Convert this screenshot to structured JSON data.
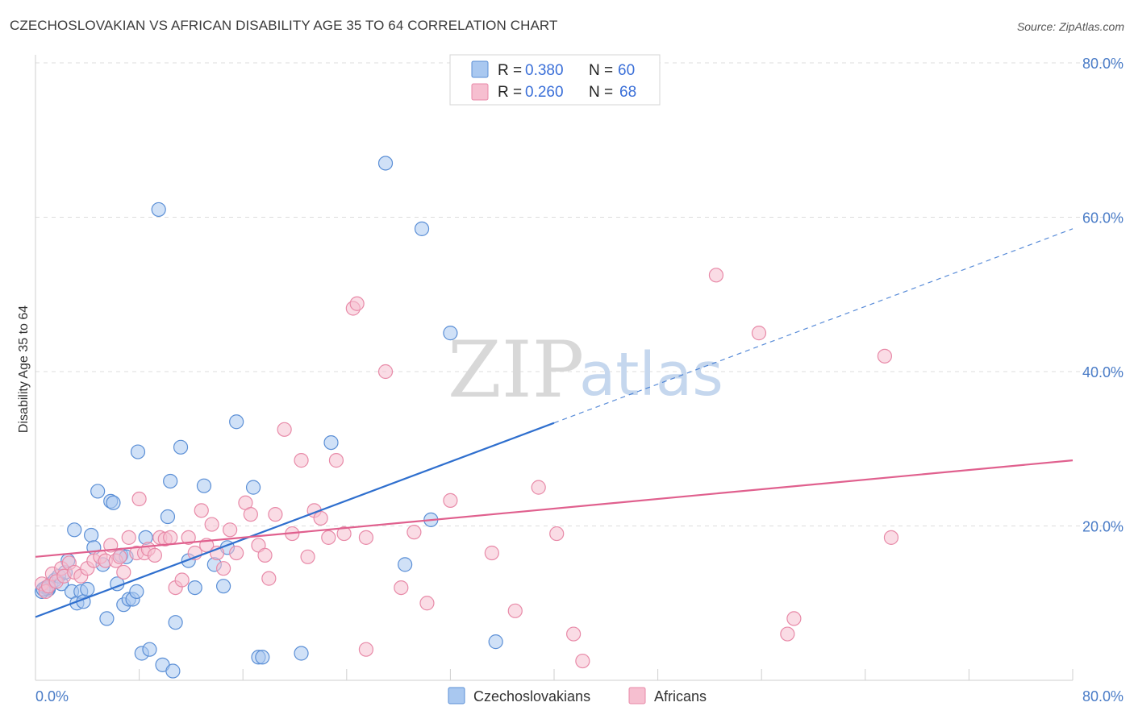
{
  "title": "CZECHOSLOVAKIAN VS AFRICAN DISABILITY AGE 35 TO 64 CORRELATION CHART",
  "source": "Source: ZipAtlas.com",
  "watermark": {
    "zip": "ZIP",
    "atlas": "atlas"
  },
  "colors": {
    "blue_fill": "#a9c8f0",
    "blue_stroke": "#5b8fd6",
    "blue_line": "#2f6fce",
    "pink_fill": "#f6bfd0",
    "pink_stroke": "#e88aa8",
    "pink_line": "#e0608e",
    "grid": "#dddddd",
    "tick": "#4a7cc7"
  },
  "legend": {
    "r_label": "R =",
    "n_label": "N =",
    "series": [
      {
        "r": "0.380",
        "n": "60"
      },
      {
        "r": "0.260",
        "n": "68"
      }
    ]
  },
  "bottom_legend": [
    "Czechoslovakians",
    "Africans"
  ],
  "chart_data": {
    "type": "scatter",
    "title": "CZECHOSLOVAKIAN VS AFRICAN DISABILITY AGE 35 TO 64 CORRELATION CHART",
    "xlabel": "",
    "ylabel": "Disability Age 35 to 64",
    "xlim": [
      0,
      80
    ],
    "ylim": [
      0,
      80
    ],
    "x_tick_labels": [
      "0.0%",
      "80.0%"
    ],
    "y_tick_labels": [
      "20.0%",
      "40.0%",
      "60.0%",
      "80.0%"
    ],
    "y_ticks": [
      20,
      40,
      60,
      80
    ],
    "series": [
      {
        "name": "Czechoslovakians",
        "r": 0.38,
        "n": 60,
        "trend": {
          "x0": 0,
          "y0": 8.2,
          "x1": 80,
          "y1": 58.5,
          "solid_until": 40
        },
        "points": [
          [
            0.5,
            11.5
          ],
          [
            0.8,
            12.0
          ],
          [
            1.0,
            11.8
          ],
          [
            1.2,
            12.5
          ],
          [
            1.5,
            13.0
          ],
          [
            1.8,
            13.5
          ],
          [
            2.0,
            12.5
          ],
          [
            2.3,
            14.0
          ],
          [
            2.5,
            15.5
          ],
          [
            2.8,
            11.5
          ],
          [
            3.0,
            19.5
          ],
          [
            3.2,
            10.0
          ],
          [
            3.5,
            11.5
          ],
          [
            3.7,
            10.2
          ],
          [
            4.0,
            11.8
          ],
          [
            4.3,
            18.8
          ],
          [
            4.5,
            17.2
          ],
          [
            4.8,
            24.5
          ],
          [
            5.2,
            15.0
          ],
          [
            5.5,
            8.0
          ],
          [
            5.8,
            23.2
          ],
          [
            6.0,
            23.0
          ],
          [
            6.3,
            12.5
          ],
          [
            6.6,
            16.2
          ],
          [
            6.8,
            9.8
          ],
          [
            7.0,
            16.0
          ],
          [
            7.2,
            10.5
          ],
          [
            7.5,
            10.5
          ],
          [
            7.8,
            11.5
          ],
          [
            7.9,
            29.6
          ],
          [
            8.2,
            3.5
          ],
          [
            8.5,
            18.5
          ],
          [
            8.8,
            4.0
          ],
          [
            9.5,
            61.0
          ],
          [
            9.8,
            2.0
          ],
          [
            10.2,
            21.2
          ],
          [
            10.4,
            25.8
          ],
          [
            10.6,
            1.2
          ],
          [
            10.8,
            7.5
          ],
          [
            11.2,
            30.2
          ],
          [
            11.8,
            15.5
          ],
          [
            12.3,
            12.0
          ],
          [
            13.0,
            25.2
          ],
          [
            13.8,
            15.0
          ],
          [
            14.5,
            12.2
          ],
          [
            14.8,
            17.2
          ],
          [
            15.5,
            33.5
          ],
          [
            16.8,
            25.0
          ],
          [
            17.2,
            3.0
          ],
          [
            17.5,
            3.0
          ],
          [
            20.5,
            3.5
          ],
          [
            22.8,
            30.8
          ],
          [
            27.0,
            67.0
          ],
          [
            28.5,
            15.0
          ],
          [
            29.8,
            58.5
          ],
          [
            30.5,
            20.8
          ],
          [
            32.0,
            45.0
          ],
          [
            35.5,
            5.0
          ],
          [
            1.0,
            12.0
          ],
          [
            0.6,
            11.8
          ]
        ]
      },
      {
        "name": "Africans",
        "r": 0.26,
        "n": 68,
        "trend": {
          "x0": 0,
          "y0": 16.0,
          "x1": 80,
          "y1": 28.5
        },
        "points": [
          [
            0.5,
            12.5
          ],
          [
            0.8,
            11.5
          ],
          [
            1.0,
            12.2
          ],
          [
            1.3,
            13.8
          ],
          [
            1.6,
            12.8
          ],
          [
            2.0,
            14.5
          ],
          [
            2.2,
            13.5
          ],
          [
            2.6,
            15.2
          ],
          [
            3.0,
            14.0
          ],
          [
            3.5,
            13.5
          ],
          [
            4.0,
            14.5
          ],
          [
            4.5,
            15.5
          ],
          [
            5.0,
            16.0
          ],
          [
            5.4,
            15.5
          ],
          [
            5.8,
            17.5
          ],
          [
            6.2,
            15.5
          ],
          [
            6.5,
            16.0
          ],
          [
            6.8,
            14.0
          ],
          [
            7.2,
            18.5
          ],
          [
            7.8,
            16.5
          ],
          [
            8.0,
            23.5
          ],
          [
            8.4,
            16.5
          ],
          [
            8.7,
            17.0
          ],
          [
            9.2,
            16.2
          ],
          [
            9.6,
            18.5
          ],
          [
            10.0,
            18.3
          ],
          [
            10.4,
            18.5
          ],
          [
            10.8,
            12.0
          ],
          [
            11.3,
            13.0
          ],
          [
            11.8,
            18.5
          ],
          [
            12.3,
            16.5
          ],
          [
            12.8,
            22.0
          ],
          [
            13.2,
            17.5
          ],
          [
            13.6,
            20.2
          ],
          [
            14.0,
            16.5
          ],
          [
            14.5,
            14.5
          ],
          [
            15.0,
            19.5
          ],
          [
            15.5,
            16.5
          ],
          [
            16.2,
            23.0
          ],
          [
            16.6,
            21.5
          ],
          [
            17.2,
            17.5
          ],
          [
            17.7,
            16.2
          ],
          [
            18.0,
            13.2
          ],
          [
            18.5,
            21.5
          ],
          [
            19.2,
            32.5
          ],
          [
            19.8,
            19.0
          ],
          [
            20.5,
            28.5
          ],
          [
            21.0,
            16.0
          ],
          [
            21.5,
            22.0
          ],
          [
            22.0,
            21.0
          ],
          [
            22.6,
            18.5
          ],
          [
            23.2,
            28.5
          ],
          [
            23.8,
            19.0
          ],
          [
            24.5,
            48.2
          ],
          [
            24.8,
            48.8
          ],
          [
            25.5,
            18.5
          ],
          [
            27.0,
            40.0
          ],
          [
            28.2,
            12.0
          ],
          [
            29.2,
            19.2
          ],
          [
            30.2,
            10.0
          ],
          [
            32.0,
            23.3
          ],
          [
            35.2,
            16.5
          ],
          [
            37.0,
            9.0
          ],
          [
            38.8,
            25.0
          ],
          [
            40.2,
            19.0
          ],
          [
            41.5,
            6.0
          ],
          [
            42.2,
            2.5
          ],
          [
            52.5,
            52.5
          ]
        ],
        "extra_points": [
          [
            55.8,
            45.0
          ],
          [
            65.5,
            42.0
          ],
          [
            66.0,
            18.5
          ],
          [
            58.5,
            8.0
          ],
          [
            58.0,
            6.0
          ],
          [
            25.5,
            4.0
          ]
        ]
      }
    ]
  }
}
